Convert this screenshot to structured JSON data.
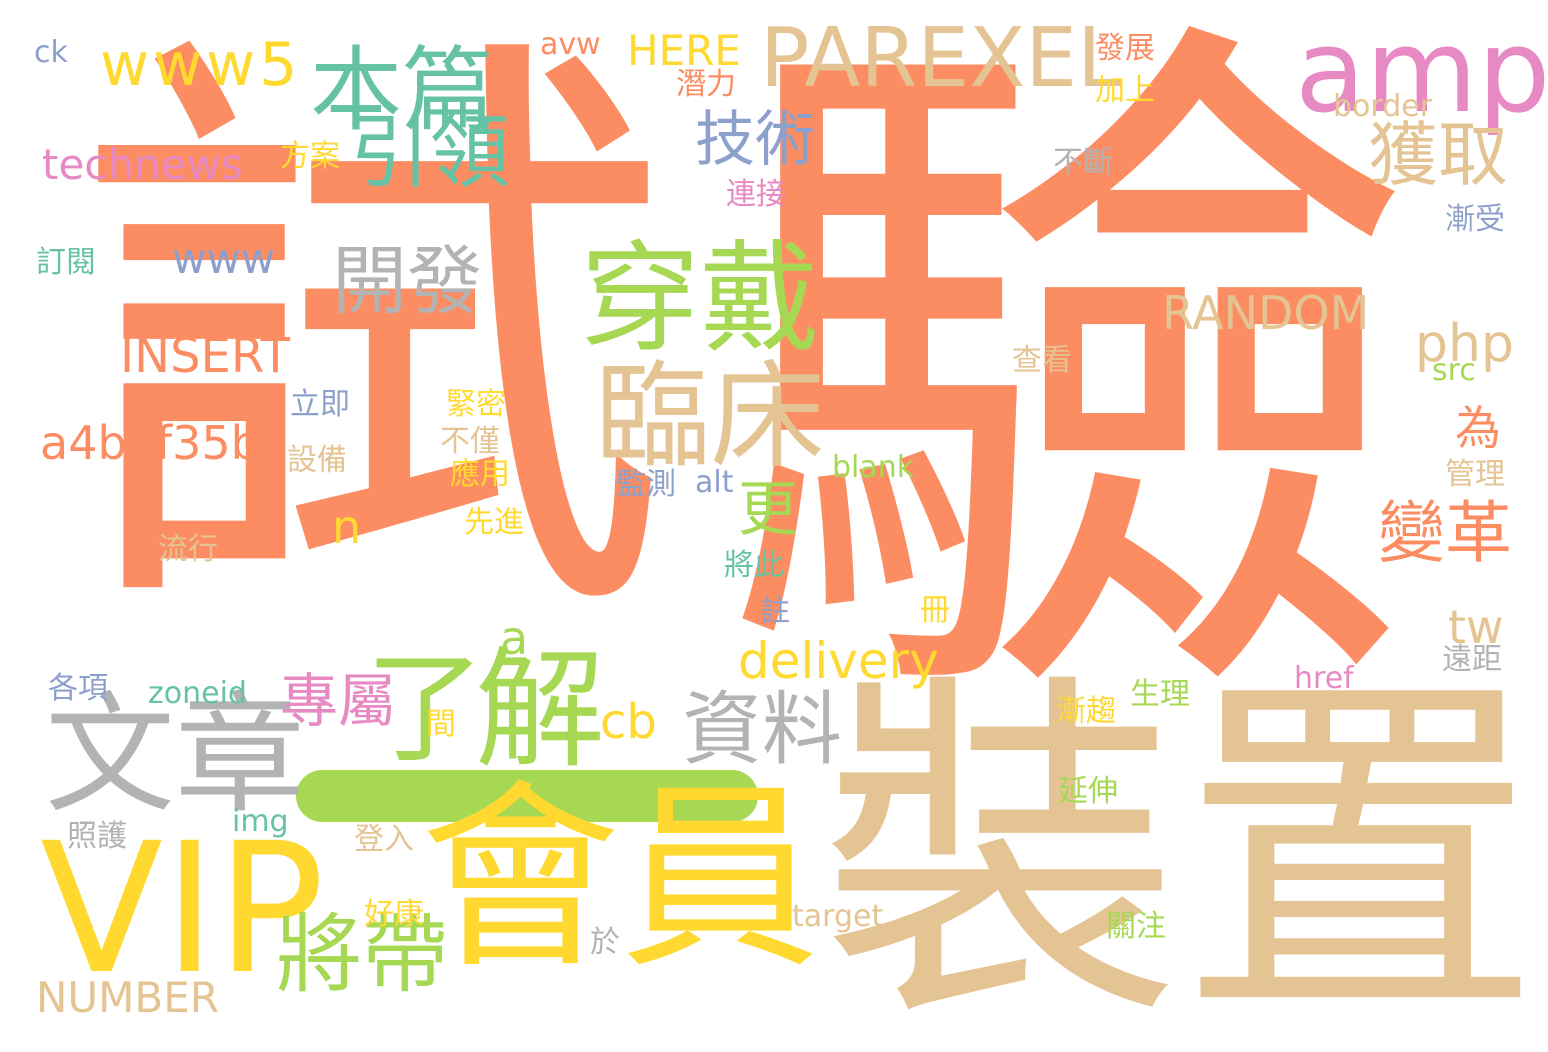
{
  "palette": {
    "orange": "#fc8d62",
    "tan": "#e5c494",
    "yellow": "#ffd92f",
    "green": "#a6d854",
    "pink": "#e78ac3",
    "teal": "#66c2a5",
    "blue": "#8da0cb",
    "grey": "#b3b3b3"
  },
  "words": [
    {
      "text": "試",
      "color": "orange"
    },
    {
      "text": "驗",
      "color": "orange"
    },
    {
      "text": "裝置",
      "color": "tan"
    },
    {
      "text": "會員",
      "color": "yellow"
    },
    {
      "text": "VIP",
      "color": "yellow"
    },
    {
      "text": "文章",
      "color": "grey"
    },
    {
      "text": "解",
      "color": "green"
    },
    {
      "text": "了",
      "color": "green"
    },
    {
      "text": "穿戴",
      "color": "green"
    },
    {
      "text": "臨床",
      "color": "tan"
    },
    {
      "text": "amp",
      "color": "pink"
    },
    {
      "text": "PAREXEL",
      "color": "tan"
    },
    {
      "text": "本篇",
      "color": "teal"
    },
    {
      "text": "引領",
      "color": "teal"
    },
    {
      "text": "www5",
      "color": "yellow"
    },
    {
      "text": "technews",
      "color": "pink"
    },
    {
      "text": "技術",
      "color": "blue"
    },
    {
      "text": "獲取",
      "color": "tan"
    },
    {
      "text": "開發",
      "color": "grey"
    },
    {
      "text": "www",
      "color": "blue"
    },
    {
      "text": "INSERT",
      "color": "orange"
    },
    {
      "text": "a4b3f35b",
      "color": "orange"
    },
    {
      "text": "RANDOM",
      "color": "tan"
    },
    {
      "text": "php",
      "color": "tan"
    },
    {
      "text": "為",
      "color": "orange"
    },
    {
      "text": "變革",
      "color": "orange"
    },
    {
      "text": "更",
      "color": "green"
    },
    {
      "text": "n",
      "color": "yellow"
    },
    {
      "text": "專屬",
      "color": "pink"
    },
    {
      "text": "a",
      "color": "green"
    },
    {
      "text": "delivery",
      "color": "yellow"
    },
    {
      "text": "資料",
      "color": "grey"
    },
    {
      "text": "cb",
      "color": "yellow"
    },
    {
      "text": "tw",
      "color": "tan"
    },
    {
      "text": "將帶",
      "color": "green"
    },
    {
      "text": "NUMBER",
      "color": "tan"
    },
    {
      "text": "HERE",
      "color": "yellow"
    },
    {
      "text": "avw",
      "color": "orange"
    },
    {
      "text": "ck",
      "color": "blue"
    },
    {
      "text": "發展",
      "color": "orange"
    },
    {
      "text": "加上",
      "color": "yellow"
    },
    {
      "text": "潛力",
      "color": "orange"
    },
    {
      "text": "border",
      "color": "tan"
    },
    {
      "text": "方案",
      "color": "yellow"
    },
    {
      "text": "連接",
      "color": "pink"
    },
    {
      "text": "不斷",
      "color": "grey"
    },
    {
      "text": "漸受",
      "color": "blue"
    },
    {
      "text": "訂閱",
      "color": "teal"
    },
    {
      "text": "src",
      "color": "green"
    },
    {
      "text": "查看",
      "color": "tan"
    },
    {
      "text": "立即",
      "color": "blue"
    },
    {
      "text": "緊密",
      "color": "yellow"
    },
    {
      "text": "不僅",
      "color": "tan"
    },
    {
      "text": "設備",
      "color": "tan"
    },
    {
      "text": "應用",
      "color": "yellow"
    },
    {
      "text": "blank",
      "color": "green"
    },
    {
      "text": "監測",
      "color": "blue"
    },
    {
      "text": "alt",
      "color": "blue"
    },
    {
      "text": "管理",
      "color": "tan"
    },
    {
      "text": "流行",
      "color": "tan"
    },
    {
      "text": "先進",
      "color": "yellow"
    },
    {
      "text": "將此",
      "color": "teal"
    },
    {
      "text": "冊",
      "color": "yellow"
    },
    {
      "text": "註",
      "color": "blue"
    },
    {
      "text": "遠距",
      "color": "grey"
    },
    {
      "text": "各項",
      "color": "blue"
    },
    {
      "text": "zoneid",
      "color": "teal"
    },
    {
      "text": "href",
      "color": "pink"
    },
    {
      "text": "生理",
      "color": "green"
    },
    {
      "text": "漸趨",
      "color": "yellow"
    },
    {
      "text": "間",
      "color": "yellow"
    },
    {
      "text": "延伸",
      "color": "green"
    },
    {
      "text": "img",
      "color": "teal"
    },
    {
      "text": "照護",
      "color": "grey"
    },
    {
      "text": "登入",
      "color": "tan"
    },
    {
      "text": "target",
      "color": "tan"
    },
    {
      "text": "好康",
      "color": "yellow"
    },
    {
      "text": "關注",
      "color": "green"
    },
    {
      "text": "於",
      "color": "grey"
    }
  ]
}
